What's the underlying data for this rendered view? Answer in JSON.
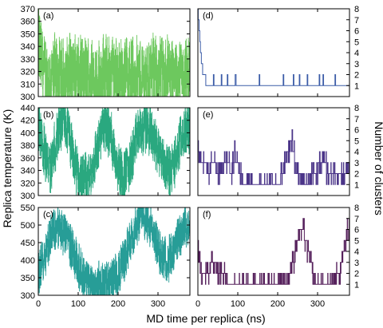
{
  "chart_data": {
    "type": "line",
    "xlabel": "MD time per replica (ns)",
    "ylabel_left": "Replica temperature (K)",
    "ylabel_right": "Number of clusters",
    "xlim": [
      0,
      380
    ],
    "x_ticks": [
      0,
      100,
      200,
      300
    ],
    "panels": [
      {
        "label": "(a)",
        "series_type": "temperature",
        "color": "#6dc85e",
        "ylim": [
          300,
          370
        ],
        "y_ticks": [
          300,
          310,
          320,
          330,
          340,
          350,
          360,
          370
        ],
        "profile": [
          [
            0,
            342
          ],
          [
            20,
            312
          ],
          [
            40,
            318
          ],
          [
            60,
            314
          ],
          [
            80,
            320
          ],
          [
            100,
            315
          ],
          [
            120,
            318
          ],
          [
            140,
            314
          ],
          [
            160,
            316
          ],
          [
            180,
            319
          ],
          [
            200,
            314
          ],
          [
            220,
            320
          ],
          [
            240,
            317
          ],
          [
            260,
            313
          ],
          [
            280,
            318
          ],
          [
            300,
            315
          ],
          [
            320,
            319
          ],
          [
            340,
            314
          ],
          [
            360,
            316
          ],
          [
            375,
            318
          ]
        ],
        "amplitude": 22
      },
      {
        "label": "(b)",
        "series_type": "temperature",
        "color": "#2aa87f",
        "ylim": [
          300,
          440
        ],
        "y_ticks": [
          300,
          320,
          340,
          360,
          380,
          400,
          420,
          440
        ],
        "profile": [
          [
            0,
            420
          ],
          [
            15,
            370
          ],
          [
            30,
            340
          ],
          [
            45,
            390
          ],
          [
            60,
            420
          ],
          [
            75,
            400
          ],
          [
            90,
            350
          ],
          [
            110,
            320
          ],
          [
            130,
            330
          ],
          [
            150,
            380
          ],
          [
            165,
            415
          ],
          [
            180,
            400
          ],
          [
            195,
            360
          ],
          [
            210,
            330
          ],
          [
            230,
            350
          ],
          [
            250,
            400
          ],
          [
            270,
            410
          ],
          [
            290,
            390
          ],
          [
            310,
            360
          ],
          [
            330,
            335
          ],
          [
            345,
            360
          ],
          [
            360,
            395
          ],
          [
            375,
            410
          ]
        ],
        "amplitude": 30
      },
      {
        "label": "(c)",
        "series_type": "temperature",
        "color": "#279d97",
        "ylim": [
          300,
          550
        ],
        "y_ticks": [
          300,
          350,
          400,
          450,
          500,
          550
        ],
        "profile": [
          [
            0,
            360
          ],
          [
            15,
            410
          ],
          [
            30,
            470
          ],
          [
            45,
            500
          ],
          [
            60,
            480
          ],
          [
            75,
            460
          ],
          [
            90,
            420
          ],
          [
            105,
            370
          ],
          [
            120,
            340
          ],
          [
            140,
            330
          ],
          [
            160,
            330
          ],
          [
            180,
            340
          ],
          [
            200,
            360
          ],
          [
            215,
            400
          ],
          [
            230,
            460
          ],
          [
            245,
            500
          ],
          [
            260,
            530
          ],
          [
            275,
            510
          ],
          [
            290,
            470
          ],
          [
            305,
            420
          ],
          [
            320,
            400
          ],
          [
            340,
            420
          ],
          [
            355,
            470
          ],
          [
            375,
            500
          ]
        ],
        "amplitude": 45
      },
      {
        "label": "(d)",
        "series_type": "clusters",
        "color": "#3a5ba7",
        "ylim": [
          0,
          8
        ],
        "y_ticks": [
          1,
          2,
          3,
          4,
          5,
          6,
          7,
          8
        ],
        "profile": [
          [
            0,
            8
          ],
          [
            3,
            7
          ],
          [
            6,
            5
          ],
          [
            10,
            3
          ],
          [
            14,
            2
          ],
          [
            18,
            2
          ],
          [
            22,
            1
          ],
          [
            375,
            1
          ]
        ],
        "spikes": [
          [
            40,
            2
          ],
          [
            60,
            2
          ],
          [
            75,
            2
          ],
          [
            95,
            2
          ],
          [
            155,
            2
          ],
          [
            215,
            2
          ],
          [
            240,
            2
          ],
          [
            255,
            2
          ],
          [
            275,
            2
          ],
          [
            305,
            2
          ],
          [
            315,
            2
          ],
          [
            345,
            2
          ]
        ]
      },
      {
        "label": "(e)",
        "series_type": "clusters",
        "color": "#4a3488",
        "ylim": [
          0,
          8
        ],
        "y_ticks": [
          1,
          2,
          3,
          4,
          5,
          6,
          7,
          8
        ],
        "profile": [
          [
            0,
            6
          ],
          [
            3,
            4
          ],
          [
            6,
            3
          ],
          [
            15,
            3
          ],
          [
            25,
            2
          ],
          [
            35,
            3
          ],
          [
            55,
            2
          ],
          [
            75,
            3
          ],
          [
            85,
            2
          ],
          [
            95,
            4
          ],
          [
            105,
            2
          ],
          [
            115,
            1
          ],
          [
            205,
            1
          ],
          [
            215,
            3
          ],
          [
            225,
            4
          ],
          [
            235,
            5
          ],
          [
            245,
            3
          ],
          [
            260,
            2
          ],
          [
            275,
            1
          ],
          [
            295,
            2
          ],
          [
            315,
            3
          ],
          [
            330,
            2
          ],
          [
            345,
            2
          ],
          [
            360,
            2
          ],
          [
            375,
            2
          ]
        ],
        "amplitude": 1
      },
      {
        "label": "(f)",
        "series_type": "clusters",
        "color": "#56215c",
        "ylim": [
          0,
          8
        ],
        "y_ticks": [
          1,
          2,
          3,
          4,
          5,
          6,
          7,
          8
        ],
        "profile": [
          [
            0,
            6
          ],
          [
            4,
            3
          ],
          [
            10,
            2
          ],
          [
            25,
            2
          ],
          [
            40,
            3
          ],
          [
            55,
            2
          ],
          [
            70,
            2
          ],
          [
            75,
            1
          ],
          [
            220,
            1
          ],
          [
            230,
            2
          ],
          [
            240,
            3
          ],
          [
            250,
            5
          ],
          [
            262,
            6
          ],
          [
            272,
            5
          ],
          [
            282,
            3
          ],
          [
            292,
            2
          ],
          [
            300,
            1
          ],
          [
            335,
            1
          ],
          [
            345,
            2
          ],
          [
            358,
            2
          ],
          [
            366,
            4
          ],
          [
            375,
            6
          ]
        ],
        "amplitude": 1
      }
    ]
  }
}
